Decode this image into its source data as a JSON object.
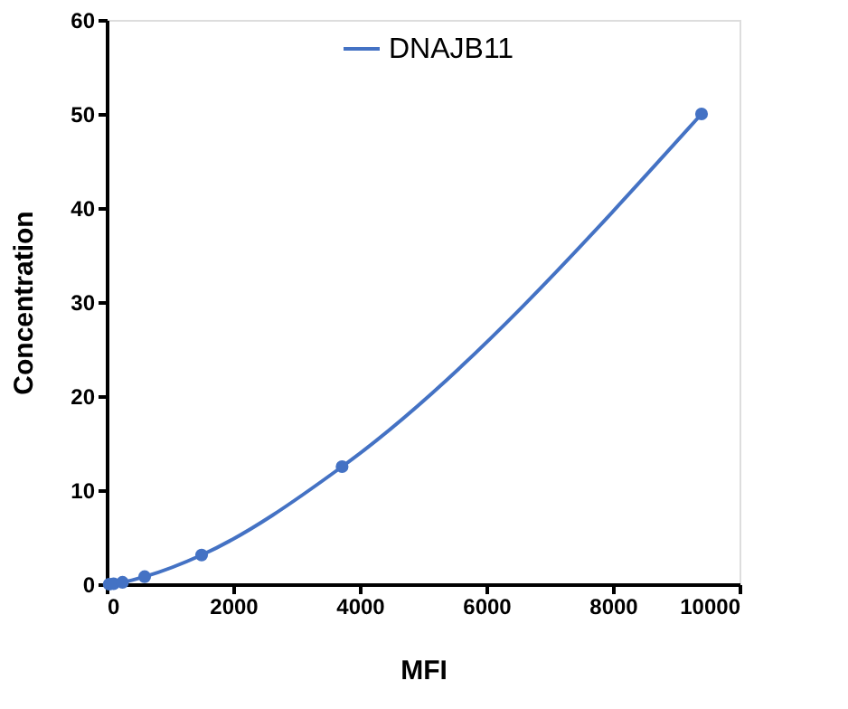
{
  "chart_data": {
    "type": "line",
    "xlabel": "MFI",
    "ylabel": "Concentration",
    "series": [
      {
        "name": "DNAJB11",
        "color": "#4472c4",
        "x": [
          40,
          110,
          250,
          600,
          1500,
          3720,
          9400
        ],
        "values": [
          0,
          0.05,
          0.2,
          0.8,
          3.1,
          12.5,
          50
        ]
      }
    ],
    "xlim": [
      0,
      10000
    ],
    "xticks": [
      0,
      2000,
      4000,
      6000,
      8000,
      10000
    ],
    "ylim": [
      0,
      60
    ],
    "yticks": [
      0,
      10,
      20,
      30,
      40,
      50,
      60
    ],
    "grid": false,
    "legend": "top",
    "marker": "circle",
    "line_style": "solid"
  }
}
